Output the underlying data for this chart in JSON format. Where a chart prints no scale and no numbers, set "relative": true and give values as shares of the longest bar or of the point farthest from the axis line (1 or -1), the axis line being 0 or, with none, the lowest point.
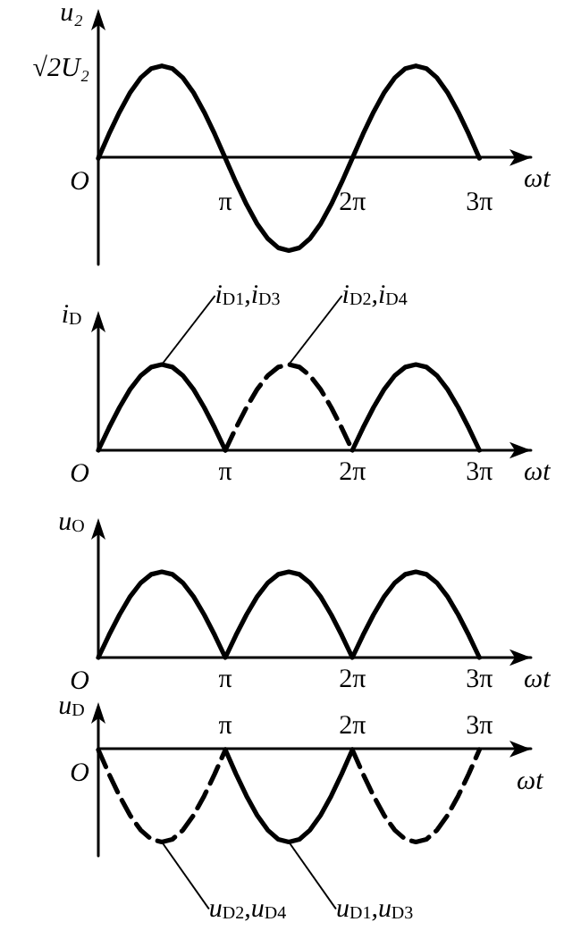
{
  "chart_data": [
    {
      "type": "line",
      "ylabel": "u₂",
      "xlabel": "ωt",
      "relative": true,
      "marker": "none",
      "grid": false,
      "legend": false,
      "xlim": [
        0,
        10.7
      ],
      "xticks": [
        {
          "value": 3.142,
          "label": "π"
        },
        {
          "value": 6.283,
          "label": "2π"
        },
        {
          "value": 9.425,
          "label": "3π"
        }
      ],
      "annotations": [
        "√2U₂",
        "O"
      ],
      "series": [
        {
          "color": "#000000",
          "line_style": "solid",
          "x": [
            0,
            0.262,
            0.524,
            0.785,
            1.047,
            1.309,
            1.571,
            1.833,
            2.094,
            2.356,
            2.618,
            2.88,
            3.142,
            3.403,
            3.665,
            3.927,
            4.189,
            4.451,
            4.712,
            4.974,
            5.236,
            5.498,
            5.76,
            6.021,
            6.283,
            6.545,
            6.807,
            7.069,
            7.33,
            7.592,
            7.854,
            8.116,
            8.378,
            8.639,
            8.901,
            9.163,
            9.425
          ],
          "values": [
            0,
            0.26,
            0.5,
            0.71,
            0.87,
            0.97,
            1,
            0.97,
            0.87,
            0.71,
            0.5,
            0.26,
            0,
            -0.26,
            -0.5,
            -0.71,
            -0.87,
            -0.97,
            -1,
            -0.97,
            -0.87,
            -0.71,
            -0.5,
            -0.26,
            0,
            0.26,
            0.5,
            0.71,
            0.87,
            0.97,
            1,
            0.97,
            0.87,
            0.71,
            0.5,
            0.26,
            0
          ]
        }
      ]
    },
    {
      "type": "line",
      "ylabel": "i$_{D}$",
      "xlabel": "ωt",
      "relative": true,
      "marker": "none",
      "grid": false,
      "legend": false,
      "xlim": [
        0,
        10.7
      ],
      "xticks": [
        {
          "value": 3.142,
          "label": "π"
        },
        {
          "value": 6.283,
          "label": "2π"
        },
        {
          "value": 9.425,
          "label": "3π"
        }
      ],
      "annotations": [
        "O"
      ],
      "series": [
        {
          "name": "i$_{D1}$,i$_{D3}$",
          "color": "#000000",
          "line_style": "solid",
          "x": [
            0,
            0.262,
            0.524,
            0.785,
            1.047,
            1.309,
            1.571,
            1.833,
            2.094,
            2.356,
            2.618,
            2.88,
            3.142,
            4.712,
            6.283,
            6.545,
            6.807,
            7.069,
            7.33,
            7.592,
            7.854,
            8.116,
            8.378,
            8.639,
            8.901,
            9.163,
            9.425
          ],
          "values": [
            0,
            0.26,
            0.5,
            0.71,
            0.87,
            0.97,
            1,
            0.97,
            0.87,
            0.71,
            0.5,
            0.26,
            0,
            null,
            0,
            0.26,
            0.5,
            0.71,
            0.87,
            0.97,
            1,
            0.97,
            0.87,
            0.71,
            0.5,
            0.26,
            0
          ]
        },
        {
          "name": "i$_{D2}$,i$_{D4}$",
          "color": "#000000",
          "line_style": "dashed",
          "x": [
            3.142,
            3.403,
            3.665,
            3.927,
            4.189,
            4.451,
            4.712,
            4.974,
            5.236,
            5.498,
            5.76,
            6.021,
            6.283
          ],
          "values": [
            0,
            0.26,
            0.5,
            0.71,
            0.87,
            0.97,
            1,
            0.97,
            0.87,
            0.71,
            0.5,
            0.26,
            0
          ]
        }
      ]
    },
    {
      "type": "line",
      "ylabel": "u$_{O}$",
      "xlabel": "ωt",
      "relative": true,
      "marker": "none",
      "grid": false,
      "legend": false,
      "xlim": [
        0,
        10.7
      ],
      "xticks": [
        {
          "value": 3.142,
          "label": "π"
        },
        {
          "value": 6.283,
          "label": "2π"
        },
        {
          "value": 9.425,
          "label": "3π"
        }
      ],
      "annotations": [
        "O"
      ],
      "series": [
        {
          "color": "#000000",
          "line_style": "solid",
          "x": [
            0,
            0.262,
            0.524,
            0.785,
            1.047,
            1.309,
            1.571,
            1.833,
            2.094,
            2.356,
            2.618,
            2.88,
            3.142,
            3.403,
            3.665,
            3.927,
            4.189,
            4.451,
            4.712,
            4.974,
            5.236,
            5.498,
            5.76,
            6.021,
            6.283,
            6.545,
            6.807,
            7.069,
            7.33,
            7.592,
            7.854,
            8.116,
            8.378,
            8.639,
            8.901,
            9.163,
            9.425
          ],
          "values": [
            0,
            0.26,
            0.5,
            0.71,
            0.87,
            0.97,
            1,
            0.97,
            0.87,
            0.71,
            0.5,
            0.26,
            0,
            0.26,
            0.5,
            0.71,
            0.87,
            0.97,
            1,
            0.97,
            0.87,
            0.71,
            0.5,
            0.26,
            0,
            0.26,
            0.5,
            0.71,
            0.87,
            0.97,
            1,
            0.97,
            0.87,
            0.71,
            0.5,
            0.26,
            0
          ]
        }
      ]
    },
    {
      "type": "line",
      "ylabel": "u$_{D}$",
      "xlabel": "ωt",
      "relative": true,
      "marker": "none",
      "grid": false,
      "legend": false,
      "xlim": [
        0,
        10.7
      ],
      "xticks": [
        {
          "value": 3.142,
          "label": "π"
        },
        {
          "value": 6.283,
          "label": "2π"
        },
        {
          "value": 9.425,
          "label": "3π"
        }
      ],
      "annotations": [
        "O"
      ],
      "series": [
        {
          "name": "u$_{D2}$,u$_{D4}$",
          "color": "#000000",
          "line_style": "dashed",
          "x": [
            0,
            0.262,
            0.524,
            0.785,
            1.047,
            1.309,
            1.571,
            1.833,
            2.094,
            2.356,
            2.618,
            2.88,
            3.142,
            4.712,
            6.283,
            6.545,
            6.807,
            7.069,
            7.33,
            7.592,
            7.854,
            8.116,
            8.378,
            8.639,
            8.901,
            9.163,
            9.425
          ],
          "values": [
            0,
            -0.26,
            -0.5,
            -0.71,
            -0.87,
            -0.97,
            -1,
            -0.97,
            -0.87,
            -0.71,
            -0.5,
            -0.26,
            0,
            null,
            0,
            -0.26,
            -0.5,
            -0.71,
            -0.87,
            -0.97,
            -1,
            -0.97,
            -0.87,
            -0.71,
            -0.5,
            -0.26,
            0
          ]
        },
        {
          "name": "u$_{D1}$,u$_{D3}$",
          "color": "#000000",
          "line_style": "solid",
          "x": [
            3.142,
            3.403,
            3.665,
            3.927,
            4.189,
            4.451,
            4.712,
            4.974,
            5.236,
            5.498,
            5.76,
            6.021,
            6.283
          ],
          "values": [
            0,
            -0.26,
            -0.5,
            -0.71,
            -0.87,
            -0.97,
            -1,
            -0.97,
            -0.87,
            -0.71,
            -0.5,
            -0.26,
            0
          ]
        }
      ]
    }
  ]
}
